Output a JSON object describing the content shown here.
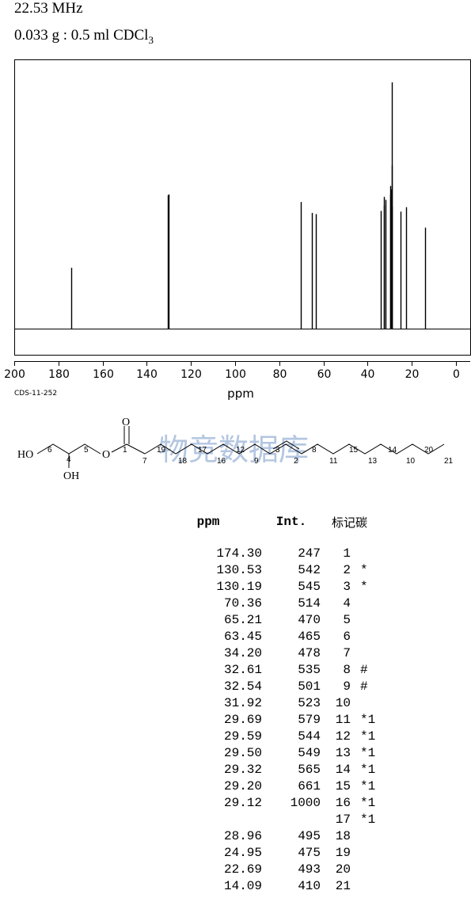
{
  "header": {
    "frequency": "22.53 MHz",
    "sample_main": "0.033 g : 0.5 ml CDCl",
    "sample_sub": "3"
  },
  "spectrum_code": "CDS-11-252",
  "watermark": "物竞数据库",
  "colors": {
    "line": "#000000",
    "watermark": "#9ab3d8"
  },
  "chart_data": {
    "type": "line",
    "xlabel": "ppm",
    "xlim": [
      200,
      0
    ],
    "x_ticks": [
      200,
      180,
      160,
      140,
      120,
      100,
      80,
      60,
      40,
      20,
      0
    ],
    "reversed_x": true,
    "peaks": [
      {
        "ppm": 174.3,
        "intensity": 247
      },
      {
        "ppm": 130.53,
        "intensity": 542
      },
      {
        "ppm": 130.19,
        "intensity": 545
      },
      {
        "ppm": 70.36,
        "intensity": 514
      },
      {
        "ppm": 65.21,
        "intensity": 470
      },
      {
        "ppm": 63.45,
        "intensity": 465
      },
      {
        "ppm": 34.2,
        "intensity": 478
      },
      {
        "ppm": 32.61,
        "intensity": 535
      },
      {
        "ppm": 32.54,
        "intensity": 501
      },
      {
        "ppm": 31.92,
        "intensity": 523
      },
      {
        "ppm": 29.69,
        "intensity": 579
      },
      {
        "ppm": 29.59,
        "intensity": 544
      },
      {
        "ppm": 29.5,
        "intensity": 549
      },
      {
        "ppm": 29.32,
        "intensity": 565
      },
      {
        "ppm": 29.2,
        "intensity": 661
      },
      {
        "ppm": 29.12,
        "intensity": 1000
      },
      {
        "ppm": 28.96,
        "intensity": 495
      },
      {
        "ppm": 24.95,
        "intensity": 475
      },
      {
        "ppm": 22.69,
        "intensity": 493
      },
      {
        "ppm": 14.09,
        "intensity": 410
      }
    ]
  },
  "structure": {
    "atoms": [
      "HO",
      "OH",
      "O",
      "O"
    ],
    "numbers": [
      "6",
      "4",
      "5",
      "1",
      "7",
      "19",
      "18",
      "17",
      "16",
      "12",
      "9",
      "3",
      "2",
      "8",
      "11",
      "15",
      "13",
      "14",
      "10",
      "20",
      "21"
    ]
  },
  "table": {
    "headers": {
      "ppm": "ppm",
      "int": "Int.",
      "label": "标记碳"
    },
    "rows": [
      {
        "ppm": "174.30",
        "int": "247",
        "label": "1",
        "mark": ""
      },
      {
        "ppm": "130.53",
        "int": "542",
        "label": "2",
        "mark": "*"
      },
      {
        "ppm": "130.19",
        "int": "545",
        "label": "3",
        "mark": "*"
      },
      {
        "ppm": "70.36",
        "int": "514",
        "label": "4",
        "mark": ""
      },
      {
        "ppm": "65.21",
        "int": "470",
        "label": "5",
        "mark": ""
      },
      {
        "ppm": "63.45",
        "int": "465",
        "label": "6",
        "mark": ""
      },
      {
        "ppm": "34.20",
        "int": "478",
        "label": "7",
        "mark": ""
      },
      {
        "ppm": "32.61",
        "int": "535",
        "label": "8",
        "mark": "#"
      },
      {
        "ppm": "32.54",
        "int": "501",
        "label": "9",
        "mark": "#"
      },
      {
        "ppm": "31.92",
        "int": "523",
        "label": "10",
        "mark": ""
      },
      {
        "ppm": "29.69",
        "int": "579",
        "label": "11",
        "mark": "*1"
      },
      {
        "ppm": "29.59",
        "int": "544",
        "label": "12",
        "mark": "*1"
      },
      {
        "ppm": "29.50",
        "int": "549",
        "label": "13",
        "mark": "*1"
      },
      {
        "ppm": "29.32",
        "int": "565",
        "label": "14",
        "mark": "*1"
      },
      {
        "ppm": "29.20",
        "int": "661",
        "label": "15",
        "mark": "*1"
      },
      {
        "ppm": "29.12",
        "int": "1000",
        "label": "16",
        "mark": "*1"
      },
      {
        "ppm": "",
        "int": "",
        "label": "17",
        "mark": "*1"
      },
      {
        "ppm": "28.96",
        "int": "495",
        "label": "18",
        "mark": ""
      },
      {
        "ppm": "24.95",
        "int": "475",
        "label": "19",
        "mark": ""
      },
      {
        "ppm": "22.69",
        "int": "493",
        "label": "20",
        "mark": ""
      },
      {
        "ppm": "14.09",
        "int": "410",
        "label": "21",
        "mark": ""
      }
    ]
  }
}
